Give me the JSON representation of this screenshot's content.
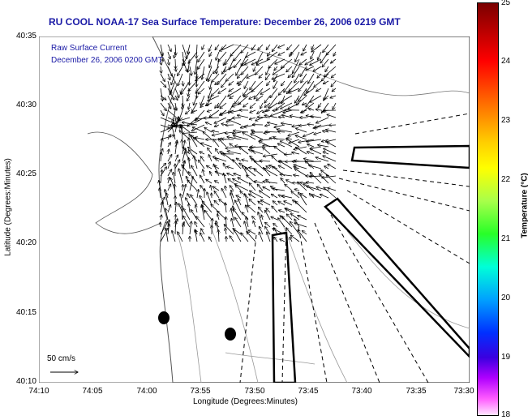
{
  "title": "RU COOL  NOAA-17  Sea Surface Temperature:  December 26, 2006 0219 GMT",
  "legend": {
    "line1": "Raw Surface Current",
    "line2": "December 26, 2006 0200 GMT"
  },
  "scale": {
    "label": "50 cm/s"
  },
  "axes": {
    "xlabel": "Longitude (Degrees:Minutes)",
    "ylabel": "Latitude (Degrees:Minutes)",
    "xticks": [
      "74:10",
      "74:05",
      "74:00",
      "73:55",
      "73:50",
      "73:45",
      "73:40",
      "73:35",
      "73:30"
    ],
    "yticks": [
      "40:35",
      "40:30",
      "40:25",
      "40:20",
      "40:15",
      "40:10"
    ]
  },
  "colorbar": {
    "label": "Temperature (°C)",
    "ticks": [
      "25",
      "24",
      "23",
      "22",
      "21",
      "20",
      "19",
      "18"
    ],
    "range": [
      18,
      25
    ]
  }
}
